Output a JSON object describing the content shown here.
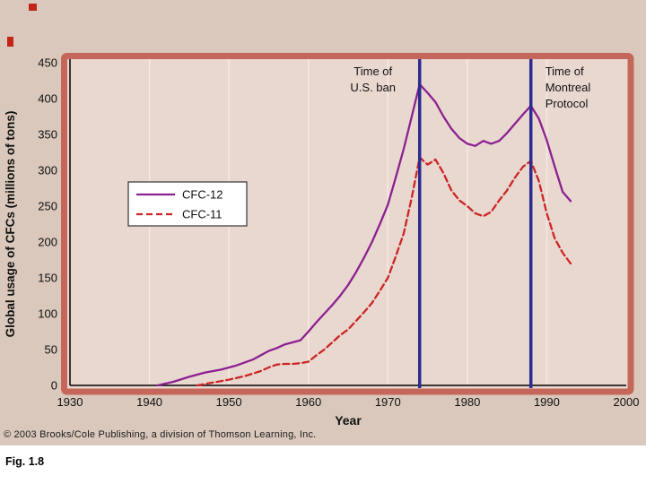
{
  "slide": {
    "background_color": "#d9c8bb",
    "copyright": "© 2003 Brooks/Cole Publishing, a division of Thomson Learning, Inc.",
    "figure_label": "Fig. 1.8"
  },
  "chart_data": {
    "type": "line",
    "title": "",
    "xlabel": "Year",
    "ylabel": "Global usage of CFCs (millions of tons)",
    "xlim": [
      1930,
      2000
    ],
    "ylim": [
      0,
      450
    ],
    "xticks": [
      1930,
      1940,
      1950,
      1960,
      1970,
      1980,
      1990,
      2000
    ],
    "yticks": [
      0,
      50,
      100,
      150,
      200,
      250,
      300,
      350,
      400,
      450
    ],
    "grid": "vertical-only",
    "legend": {
      "position": "inside-left",
      "background": "#ffffff",
      "border": "#333333"
    },
    "colors": {
      "frame": "#c4675a",
      "plot_bg": "#e9d8d0",
      "grid": "#f5ebe5",
      "axis": "#000000",
      "text": "#111111"
    },
    "series": [
      {
        "name": "CFC-12",
        "color": "#8b2090",
        "style": "solid",
        "x": [
          1941,
          1943,
          1945,
          1947,
          1949,
          1951,
          1953,
          1955,
          1956,
          1957,
          1958,
          1959,
          1960,
          1961,
          1962,
          1963,
          1964,
          1965,
          1966,
          1967,
          1968,
          1969,
          1970,
          1971,
          1972,
          1973,
          1974,
          1975,
          1976,
          1977,
          1978,
          1979,
          1980,
          1981,
          1982,
          1983,
          1984,
          1985,
          1986,
          1987,
          1988,
          1989,
          1990,
          1991,
          1992,
          1993
        ],
        "y": [
          0,
          5,
          12,
          18,
          22,
          28,
          36,
          48,
          52,
          57,
          60,
          63,
          75,
          88,
          100,
          112,
          125,
          140,
          158,
          178,
          200,
          225,
          252,
          290,
          330,
          375,
          420,
          408,
          395,
          375,
          358,
          345,
          337,
          334,
          341,
          337,
          341,
          352,
          365,
          378,
          390,
          372,
          342,
          305,
          270,
          257
        ]
      },
      {
        "name": "CFC-11",
        "color": "#cc2525",
        "style": "dashed",
        "x": [
          1946,
          1948,
          1950,
          1952,
          1954,
          1955,
          1956,
          1957,
          1958,
          1959,
          1960,
          1961,
          1962,
          1963,
          1964,
          1965,
          1966,
          1967,
          1968,
          1969,
          1970,
          1971,
          1972,
          1973,
          1974,
          1975,
          1976,
          1977,
          1978,
          1979,
          1980,
          1981,
          1982,
          1983,
          1984,
          1985,
          1986,
          1987,
          1988,
          1989,
          1990,
          1991,
          1992,
          1993
        ],
        "y": [
          0,
          4,
          8,
          13,
          20,
          25,
          29,
          30,
          30,
          31,
          33,
          42,
          50,
          60,
          70,
          78,
          90,
          102,
          115,
          132,
          150,
          180,
          212,
          262,
          318,
          308,
          315,
          296,
          272,
          258,
          250,
          240,
          236,
          242,
          258,
          272,
          290,
          305,
          313,
          285,
          240,
          205,
          185,
          170
        ]
      }
    ],
    "event_lines": [
      {
        "x": 1974,
        "color": "#2b2b90",
        "label_lines": [
          "Time of",
          "U.S. ban"
        ],
        "label_side": "left"
      },
      {
        "x": 1988,
        "color": "#2b2b90",
        "label_lines": [
          "Time of",
          "Montreal",
          "Protocol"
        ],
        "label_side": "right"
      }
    ]
  }
}
